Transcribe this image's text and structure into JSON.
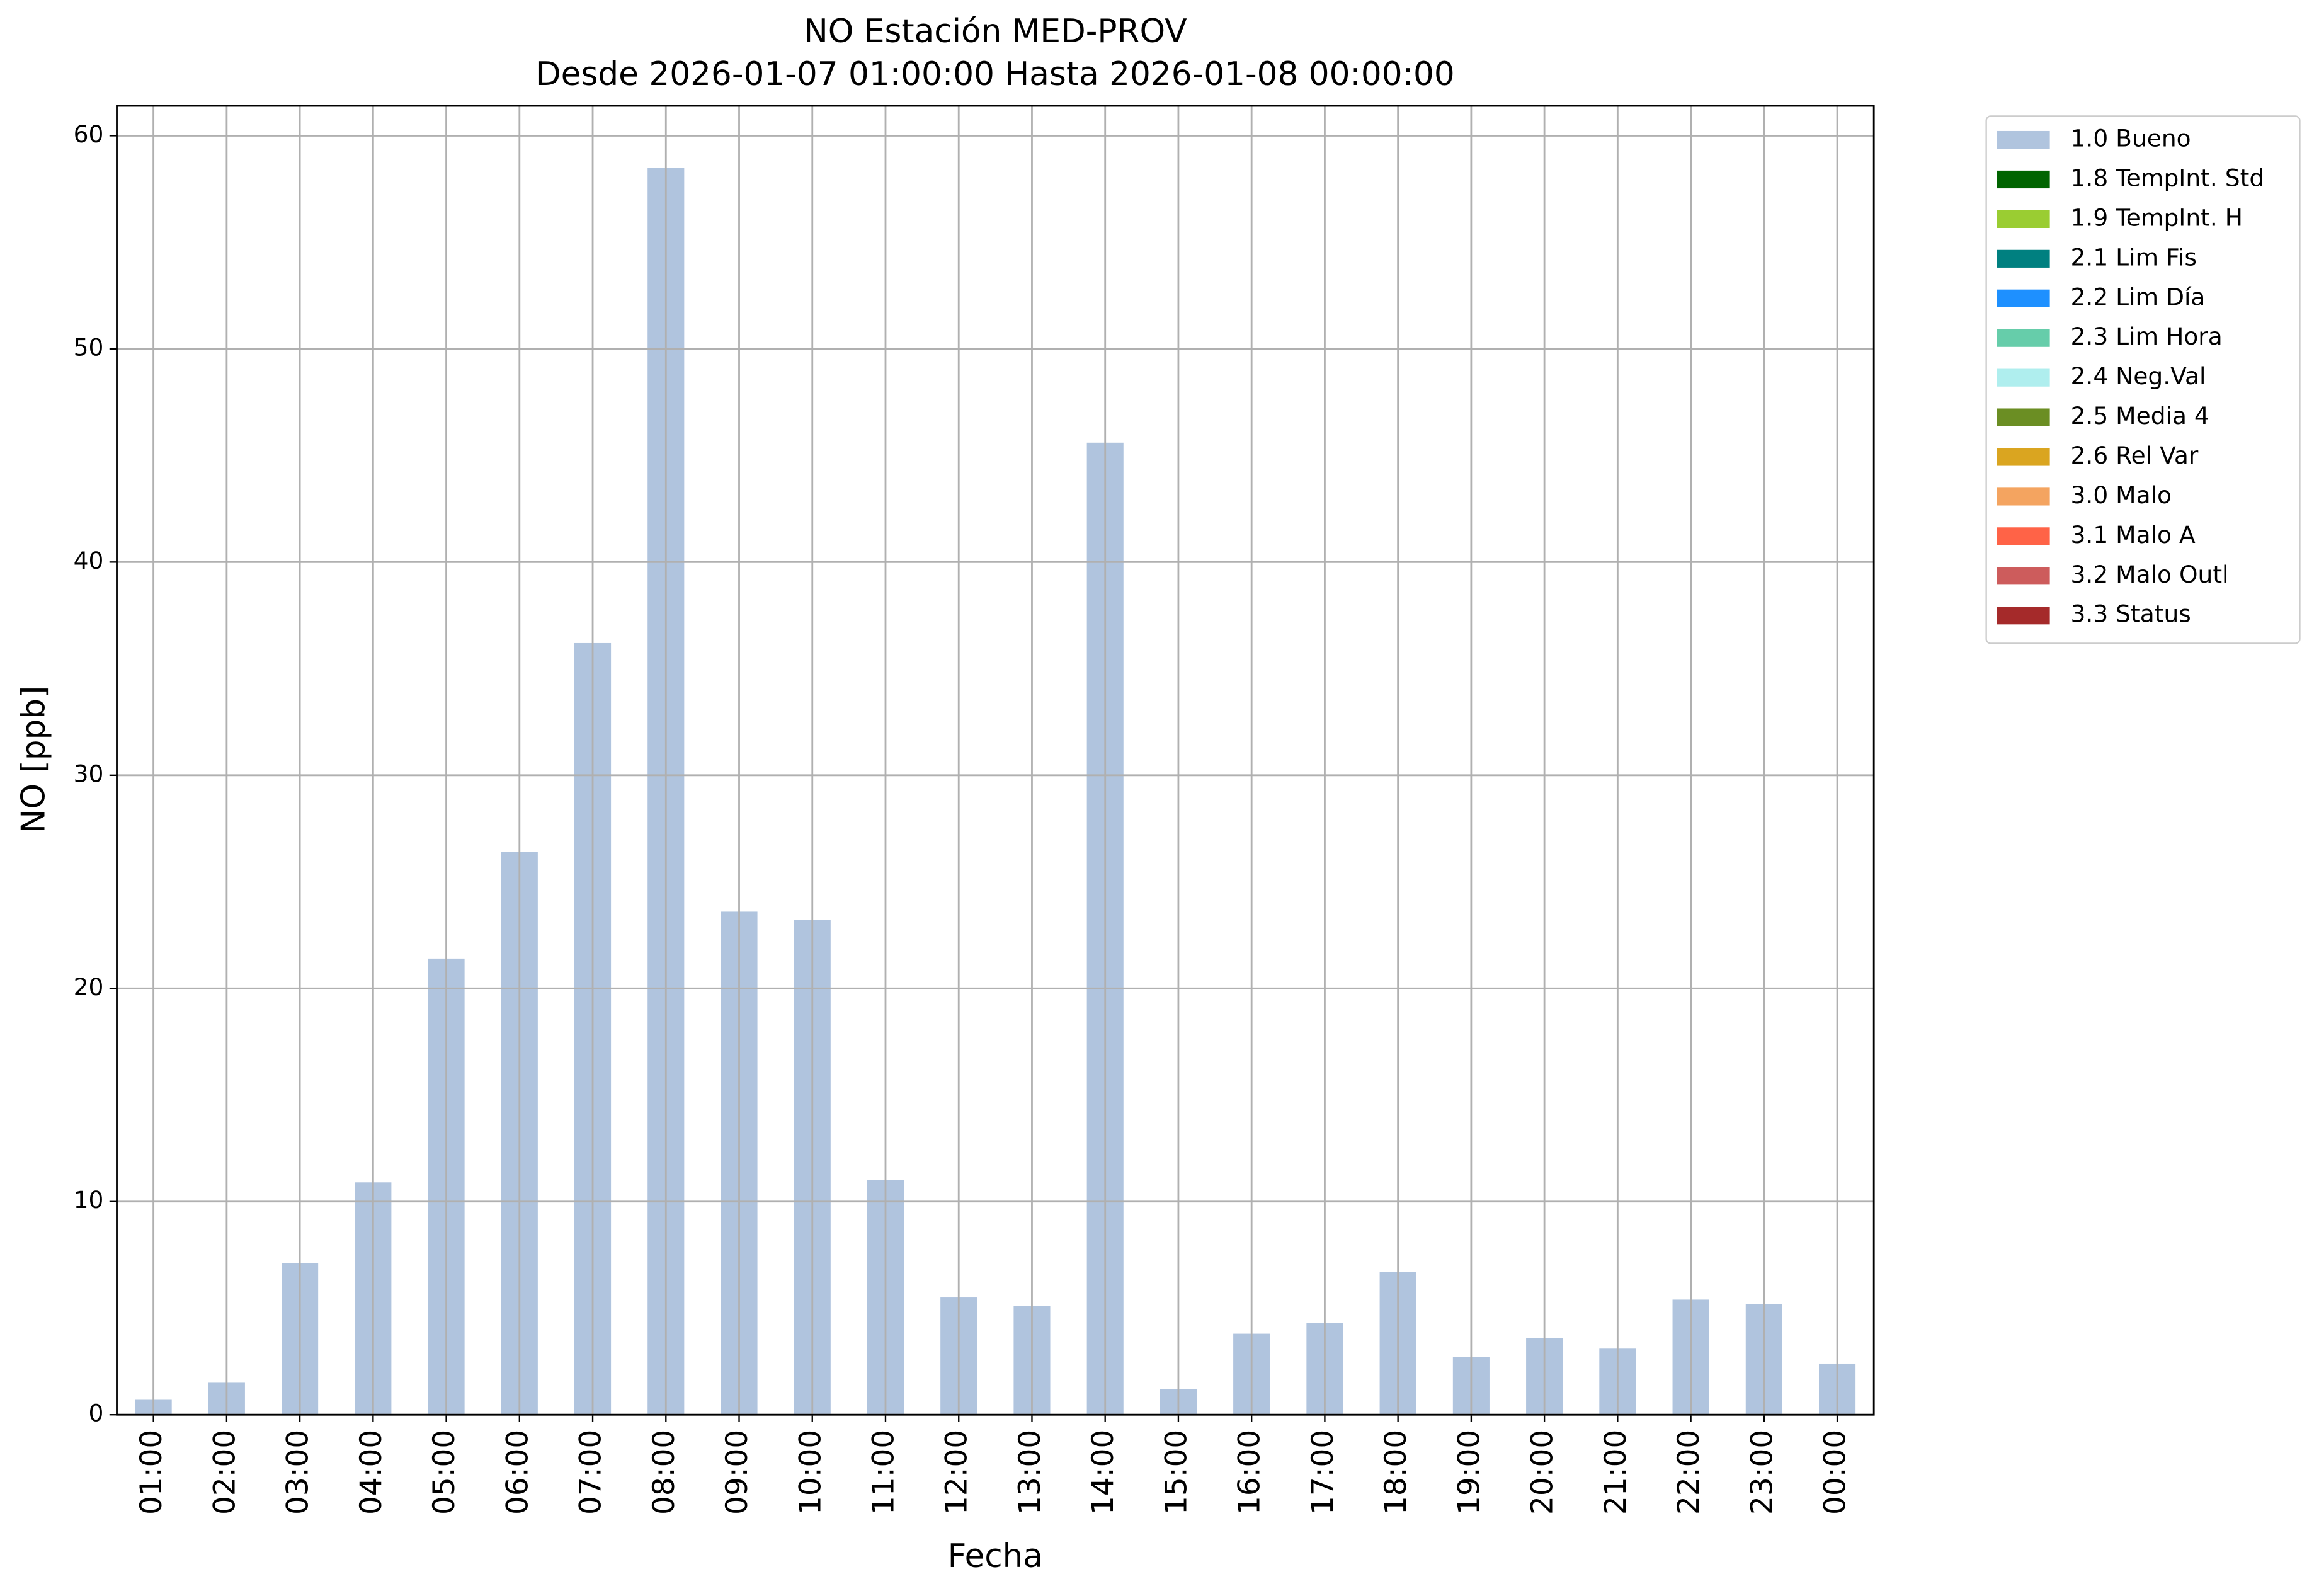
{
  "chart_data": {
    "type": "bar",
    "stacked": true,
    "title": "NO Estación MED-PROV",
    "subtitle": "Desde 2026-01-07 01:00:00 Hasta 2026-01-08 00:00:00",
    "x_label": "Fecha",
    "y_label": "NO [ppb]",
    "categories": [
      "01:00",
      "02:00",
      "03:00",
      "04:00",
      "05:00",
      "06:00",
      "07:00",
      "08:00",
      "09:00",
      "10:00",
      "11:00",
      "12:00",
      "13:00",
      "14:00",
      "15:00",
      "16:00",
      "17:00",
      "18:00",
      "19:00",
      "20:00",
      "21:00",
      "22:00",
      "23:00",
      "00:00"
    ],
    "series": [
      {
        "name": "1.0 Bueno",
        "color": "#b0c4de",
        "values": [
          0.7,
          1.5,
          7.1,
          10.9,
          21.4,
          26.4,
          36.2,
          58.5,
          23.6,
          23.2,
          11.0,
          5.5,
          5.1,
          45.6,
          1.2,
          3.8,
          4.3,
          6.7,
          2.7,
          3.6,
          3.1,
          5.4,
          5.2,
          2.4
        ]
      },
      {
        "name": "1.8 TempInt. Std",
        "color": "#006400",
        "values": [
          null,
          null,
          null,
          null,
          null,
          null,
          null,
          null,
          null,
          null,
          null,
          null,
          null,
          null,
          null,
          null,
          null,
          null,
          null,
          null,
          null,
          null,
          null,
          null
        ]
      },
      {
        "name": "1.9 TempInt. H",
        "color": "#9acd32",
        "values": [
          null,
          null,
          null,
          null,
          null,
          null,
          null,
          null,
          null,
          null,
          null,
          null,
          null,
          null,
          null,
          null,
          null,
          null,
          null,
          null,
          null,
          null,
          null,
          null
        ]
      },
      {
        "name": "2.1 Lim Fis",
        "color": "#008080",
        "values": [
          null,
          null,
          null,
          null,
          null,
          null,
          null,
          null,
          null,
          null,
          null,
          null,
          null,
          null,
          null,
          null,
          null,
          null,
          null,
          null,
          null,
          null,
          null,
          null
        ]
      },
      {
        "name": "2.2 Lim Día",
        "color": "#1e90ff",
        "values": [
          null,
          null,
          null,
          null,
          null,
          null,
          null,
          null,
          null,
          null,
          null,
          null,
          null,
          null,
          null,
          null,
          null,
          null,
          null,
          null,
          null,
          null,
          null,
          null
        ]
      },
      {
        "name": "2.3 Lim Hora",
        "color": "#66cdaa",
        "values": [
          null,
          null,
          null,
          null,
          null,
          null,
          null,
          null,
          null,
          null,
          null,
          null,
          null,
          null,
          null,
          null,
          null,
          null,
          null,
          null,
          null,
          null,
          null,
          null
        ]
      },
      {
        "name": "2.4 Neg.Val",
        "color": "#afeeee",
        "values": [
          null,
          null,
          null,
          null,
          null,
          null,
          null,
          null,
          null,
          null,
          null,
          null,
          null,
          null,
          null,
          null,
          null,
          null,
          null,
          null,
          null,
          null,
          null,
          null
        ]
      },
      {
        "name": "2.5 Media 4",
        "color": "#6b8e23",
        "values": [
          null,
          null,
          null,
          null,
          null,
          null,
          null,
          null,
          null,
          null,
          null,
          null,
          null,
          null,
          null,
          null,
          null,
          null,
          null,
          null,
          null,
          null,
          null,
          null
        ]
      },
      {
        "name": "2.6 Rel Var",
        "color": "#daa520",
        "values": [
          null,
          null,
          null,
          null,
          null,
          null,
          null,
          null,
          null,
          null,
          null,
          null,
          null,
          null,
          null,
          null,
          null,
          null,
          null,
          null,
          null,
          null,
          null,
          null
        ]
      },
      {
        "name": "3.0 Malo",
        "color": "#f4a460",
        "values": [
          null,
          null,
          null,
          null,
          null,
          null,
          null,
          null,
          null,
          null,
          null,
          null,
          null,
          null,
          null,
          null,
          null,
          null,
          null,
          null,
          null,
          null,
          null,
          null
        ]
      },
      {
        "name": "3.1 Malo A",
        "color": "#ff6347",
        "values": [
          null,
          null,
          null,
          null,
          null,
          null,
          null,
          null,
          null,
          null,
          null,
          null,
          null,
          null,
          null,
          null,
          null,
          null,
          null,
          null,
          null,
          null,
          null,
          null
        ]
      },
      {
        "name": "3.2 Malo Outl",
        "color": "#cd5c5c",
        "values": [
          null,
          null,
          null,
          null,
          null,
          null,
          null,
          null,
          null,
          null,
          null,
          null,
          null,
          null,
          null,
          null,
          null,
          null,
          null,
          null,
          null,
          null,
          null,
          null
        ]
      },
      {
        "name": "3.3 Status",
        "color": "#a52a2a",
        "values": [
          null,
          null,
          null,
          null,
          null,
          null,
          null,
          null,
          null,
          null,
          null,
          null,
          null,
          null,
          null,
          null,
          null,
          null,
          null,
          null,
          null,
          null,
          null,
          null
        ]
      }
    ],
    "ylim": [
      0,
      61.4
    ],
    "yticks": [
      0,
      10,
      20,
      30,
      40,
      50,
      60
    ],
    "grid": true,
    "legend": "outside-right"
  }
}
